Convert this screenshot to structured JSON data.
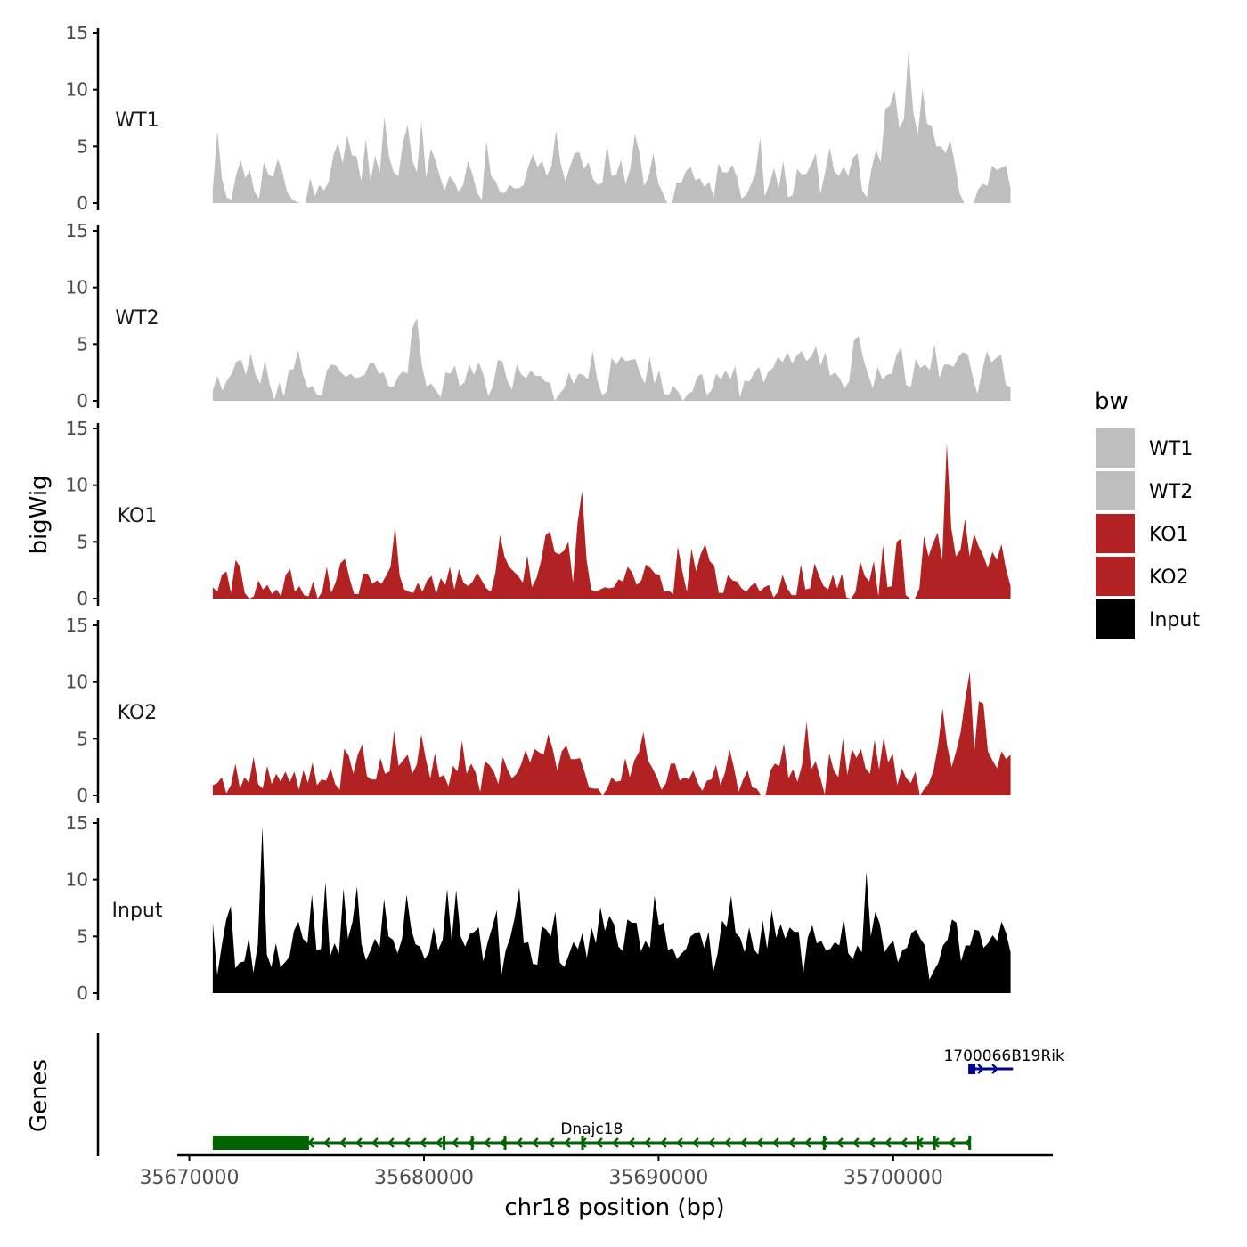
{
  "chart_data": {
    "type": "area",
    "ylabel": "bigWig",
    "xlabel": "chr18 position (bp)",
    "genes_label": "Genes",
    "ylim": [
      0,
      15
    ],
    "y_ticks": [
      0,
      5,
      10,
      15
    ],
    "y_tick_labels": [
      "0",
      "5",
      "10",
      "15"
    ],
    "x_ticks": [
      35670000,
      35680000,
      35690000,
      35700000
    ],
    "x_tick_labels": [
      "35670000",
      "35680000",
      "35690000",
      "35700000"
    ],
    "xlim": [
      35669600,
      35706800
    ],
    "data_range": [
      35671000,
      35705000
    ],
    "legend": {
      "title": "bw",
      "position": "right",
      "items": [
        {
          "label": "WT1",
          "color": "#bebebe"
        },
        {
          "label": "WT2",
          "color": "#bebebe"
        },
        {
          "label": "KO1",
          "color": "#b22222"
        },
        {
          "label": "KO2",
          "color": "#b22222"
        },
        {
          "label": "Input",
          "color": "#000000"
        }
      ]
    },
    "series": [
      {
        "name": "WT1",
        "color": "#bebebe",
        "values": [
          1.2,
          6.4,
          2.1,
          0.5,
          0.3,
          2.4,
          3.8,
          2.2,
          2.9,
          1.0,
          0.4,
          3.6,
          2.5,
          2.3,
          3.9,
          2.8,
          1.0,
          0.4,
          0.1,
          0.0,
          0.0,
          2.2,
          0.6,
          1.6,
          1.1,
          1.9,
          4.2,
          5.3,
          3.5,
          6.0,
          4.2,
          4.1,
          1.9,
          5.7,
          1.9,
          4.2,
          2.6,
          7.6,
          4.1,
          2.7,
          2.4,
          5.3,
          6.9,
          3.8,
          2.7,
          7.2,
          2.2,
          4.8,
          3.8,
          2.3,
          1.1,
          2.4,
          1.9,
          1.0,
          1.6,
          3.7,
          2.5,
          0.9,
          0.3,
          5.5,
          2.4,
          1.9,
          0.9,
          0.9,
          1.6,
          1.3,
          1.3,
          1.6,
          3.2,
          4.3,
          3.2,
          3.7,
          2.4,
          3.2,
          6.4,
          3.5,
          1.9,
          3.2,
          4.4,
          4.5,
          3.0,
          3.6,
          2.1,
          1.6,
          1.8,
          5.2,
          2.4,
          2.5,
          3.8,
          1.7,
          3.0,
          6.1,
          4.4,
          1.5,
          2.4,
          4.4,
          1.8,
          0.9,
          0.0,
          0.0,
          1.8,
          1.8,
          2.8,
          3.2,
          2.0,
          2.2,
          1.4,
          1.9,
          0.5,
          3.5,
          2.7,
          2.7,
          3.4,
          2.3,
          0.4,
          0.7,
          1.6,
          2.6,
          5.8,
          0.6,
          1.7,
          3.1,
          1.3,
          3.7,
          0.5,
          0.7,
          3.0,
          2.5,
          2.6,
          3.4,
          4.4,
          0.8,
          2.7,
          4.9,
          2.8,
          2.4,
          3.2,
          2.4,
          4.0,
          4.4,
          1.1,
          0.5,
          3.0,
          4.7,
          3.6,
          8.3,
          8.6,
          10.0,
          6.6,
          7.4,
          13.5,
          8.1,
          6.0,
          10.1,
          7.0,
          6.8,
          5.0,
          5.0,
          4.4,
          5.6,
          3.4,
          0.9,
          0.0,
          0.0,
          0.0,
          1.2,
          1.7,
          1.5,
          3.3,
          2.9,
          3.1,
          3.3,
          1.3
        ]
      },
      {
        "name": "WT2",
        "color": "#bebebe",
        "values": [
          0.9,
          2.2,
          0.9,
          1.8,
          2.4,
          3.5,
          3.6,
          2.3,
          4.2,
          2.3,
          1.5,
          3.6,
          1.4,
          0.1,
          1.6,
          0.4,
          2.7,
          2.8,
          4.5,
          2.3,
          1.1,
          1.3,
          0.5,
          0.5,
          2.7,
          3.2,
          3.1,
          2.5,
          2.1,
          2.4,
          2.0,
          2.1,
          2.3,
          3.3,
          3.3,
          2.4,
          2.5,
          1.3,
          1.2,
          2.1,
          2.6,
          2.4,
          6.4,
          7.3,
          3.2,
          1.3,
          1.5,
          0.9,
          0.3,
          2.5,
          2.4,
          3.1,
          1.3,
          1.6,
          3.2,
          2.3,
          3.4,
          2.3,
          0.4,
          1.3,
          3.6,
          3.5,
          1.8,
          1.0,
          3.2,
          2.3,
          2.0,
          2.7,
          2.2,
          2.2,
          1.7,
          1.6,
          0.0,
          0.6,
          1.1,
          2.5,
          1.5,
          2.4,
          2.3,
          1.9,
          4.4,
          1.8,
          0.5,
          0.8,
          3.8,
          3.2,
          3.9,
          3.5,
          3.6,
          3.7,
          2.4,
          1.5,
          3.9,
          1.5,
          2.7,
          0.6,
          0.5,
          1.3,
          0.8,
          0.0,
          0.6,
          0.8,
          2.1,
          2.4,
          0.5,
          0.9,
          2.4,
          1.9,
          2.7,
          1.9,
          3.1,
          0.3,
          1.8,
          1.7,
          2.5,
          3.0,
          1.6,
          2.6,
          2.9,
          3.9,
          3.4,
          4.3,
          3.3,
          4.0,
          4.4,
          3.5,
          3.9,
          4.8,
          3.1,
          4.3,
          2.2,
          2.5,
          2.0,
          1.1,
          1.7,
          5.3,
          5.7,
          3.7,
          2.3,
          1.1,
          3.0,
          1.9,
          2.3,
          2.4,
          4.1,
          4.7,
          1.4,
          1.2,
          3.7,
          2.9,
          3.2,
          2.7,
          5.0,
          2.0,
          3.2,
          3.2,
          3.0,
          3.9,
          4.3,
          4.1,
          2.2,
          0.6,
          2.6,
          4.4,
          3.4,
          3.8,
          4.1,
          1.4,
          1.2
        ]
      },
      {
        "name": "KO1",
        "color": "#b22222",
        "values": [
          1.0,
          0.6,
          2.1,
          2.4,
          0.5,
          3.4,
          2.8,
          0.5,
          0.0,
          0.2,
          1.6,
          0.8,
          1.2,
          0.4,
          0.8,
          0.2,
          2.1,
          2.6,
          0.6,
          1.1,
          0.3,
          0.2,
          1.5,
          0.0,
          0.6,
          2.8,
          0.5,
          1.5,
          3.1,
          3.5,
          1.8,
          0.4,
          0.4,
          2.2,
          2.2,
          1.3,
          1.6,
          1.3,
          2.0,
          2.8,
          6.4,
          2.0,
          0.8,
          0.6,
          0.5,
          1.4,
          0.6,
          1.6,
          2.0,
          0.4,
          1.8,
          1.2,
          2.8,
          0.8,
          2.6,
          1.4,
          1.1,
          1.5,
          2.3,
          1.6,
          0.9,
          0.6,
          2.3,
          5.6,
          3.7,
          2.8,
          2.4,
          2.0,
          1.4,
          3.8,
          1.0,
          1.8,
          3.3,
          5.6,
          5.9,
          4.1,
          3.9,
          4.2,
          5.0,
          1.4,
          6.6,
          9.5,
          3.4,
          0.8,
          0.6,
          0.8,
          1.0,
          0.9,
          1.0,
          1.7,
          1.5,
          2.8,
          2.3,
          1.2,
          1.6,
          3.0,
          2.7,
          2.2,
          2.1,
          0.6,
          0.7,
          0.4,
          4.6,
          2.4,
          0.6,
          4.4,
          2.4,
          3.9,
          4.8,
          3.3,
          2.9,
          0.5,
          0.5,
          2.1,
          1.6,
          1.5,
          0.9,
          0.6,
          1.1,
          1.4,
          0.6,
          1.0,
          1.2,
          0.1,
          0.6,
          2.1,
          0.9,
          0.3,
          0.3,
          3.0,
          0.8,
          0.9,
          3.1,
          2.0,
          1.1,
          0.8,
          2.1,
          0.9,
          2.2,
          0.1,
          0.0,
          0.6,
          3.3,
          2.0,
          1.5,
          3.3,
          0.2,
          4.7,
          1.0,
          1.1,
          5.0,
          5.3,
          0.3,
          0.0,
          0.0,
          0.9,
          5.5,
          3.7,
          4.9,
          5.8,
          3.4,
          13.7,
          6.2,
          3.7,
          4.3,
          7.0,
          3.7,
          5.7,
          4.6,
          3.8,
          2.7,
          4.1,
          3.4,
          4.8,
          2.6,
          1.1
        ]
      },
      {
        "name": "KO2",
        "color": "#b22222",
        "values": [
          0.9,
          1.1,
          1.6,
          0.2,
          0.9,
          2.8,
          0.6,
          1.6,
          1.1,
          3.4,
          1.0,
          0.6,
          2.6,
          1.0,
          1.9,
          1.2,
          2.1,
          1.2,
          2.1,
          0.5,
          2.2,
          1.1,
          2.9,
          0.9,
          1.4,
          1.3,
          2.4,
          1.0,
          0.5,
          4.1,
          3.5,
          1.9,
          3.6,
          4.5,
          1.7,
          1.4,
          1.4,
          3.3,
          1.9,
          2.1,
          5.7,
          2.6,
          3.1,
          3.6,
          1.9,
          2.7,
          5.4,
          3.2,
          1.5,
          3.7,
          1.6,
          1.8,
          0.8,
          2.6,
          2.1,
          4.8,
          1.9,
          2.8,
          2.0,
          0.3,
          3.0,
          2.7,
          2.1,
          1.0,
          3.4,
          2.3,
          1.5,
          1.9,
          2.7,
          4.0,
          2.9,
          4.1,
          3.8,
          3.6,
          5.4,
          4.1,
          2.2,
          3.9,
          4.4,
          3.2,
          3.2,
          3.3,
          2.1,
          0.7,
          0.6,
          0.6,
          0.0,
          0.6,
          1.6,
          1.2,
          1.3,
          3.3,
          1.6,
          3.1,
          3.8,
          5.6,
          3.1,
          2.4,
          1.6,
          0.5,
          1.1,
          2.8,
          2.8,
          1.3,
          1.6,
          1.4,
          2.2,
          1.1,
          0.4,
          1.3,
          1.4,
          2.7,
          0.9,
          2.0,
          4.1,
          2.4,
          0.3,
          1.4,
          2.2,
          0.7,
          0.6,
          0.0,
          0.1,
          2.2,
          2.8,
          2.6,
          4.6,
          1.5,
          2.3,
          1.2,
          2.7,
          6.5,
          2.3,
          3.0,
          1.6,
          0.1,
          3.7,
          2.2,
          1.6,
          5.0,
          1.8,
          4.1,
          3.3,
          4.1,
          2.4,
          1.9,
          4.9,
          2.3,
          5.1,
          2.9,
          3.7,
          0.9,
          2.4,
          1.5,
          1.1,
          2.1,
          0.0,
          0.6,
          1.1,
          2.2,
          4.4,
          7.7,
          4.4,
          2.5,
          3.9,
          5.6,
          8.5,
          10.9,
          3.9,
          8.3,
          8.1,
          3.9,
          3.1,
          2.4,
          3.9,
          3.2,
          3.6
        ]
      },
      {
        "name": "Input",
        "color": "#000000",
        "values": [
          6.2,
          1.6,
          4.2,
          6.5,
          7.7,
          2.2,
          2.7,
          2.8,
          4.9,
          1.8,
          4.3,
          14.7,
          3.4,
          2.3,
          4.4,
          2.3,
          2.7,
          3.2,
          5.5,
          6.3,
          4.8,
          4.4,
          8.7,
          3.8,
          3.9,
          9.8,
          3.2,
          4.4,
          3.5,
          9.2,
          4.8,
          6.3,
          9.4,
          4.3,
          2.9,
          3.8,
          4.8,
          4.0,
          8.3,
          5.0,
          4.7,
          3.5,
          4.8,
          8.7,
          5.7,
          4.3,
          4.1,
          3.0,
          3.6,
          5.8,
          3.8,
          4.7,
          9.2,
          4.6,
          9.1,
          5.0,
          4.1,
          5.2,
          5.4,
          5.8,
          2.8,
          4.5,
          5.8,
          7.3,
          1.5,
          3.8,
          4.9,
          6.7,
          9.3,
          4.4,
          4.5,
          2.6,
          2.5,
          5.9,
          5.6,
          5.0,
          7.2,
          2.7,
          2.3,
          3.4,
          4.5,
          3.9,
          5.3,
          3.1,
          5.8,
          4.4,
          7.6,
          5.5,
          6.8,
          6.1,
          4.1,
          3.7,
          6.5,
          6.2,
          6.2,
          3.7,
          4.6,
          4.0,
          8.6,
          6.0,
          6.2,
          3.8,
          4.0,
          3.0,
          3.5,
          3.9,
          5.0,
          5.3,
          5.4,
          4.0,
          5.4,
          1.8,
          3.5,
          6.4,
          5.8,
          8.6,
          5.3,
          4.9,
          3.6,
          5.8,
          3.9,
          3.4,
          6.4,
          3.9,
          7.3,
          4.9,
          6.1,
          4.8,
          5.8,
          5.4,
          5.4,
          1.7,
          4.9,
          6.0,
          4.4,
          4.6,
          3.8,
          3.9,
          4.5,
          4.2,
          6.6,
          3.5,
          3.0,
          4.2,
          3.6,
          10.7,
          5.0,
          7.2,
          6.1,
          3.6,
          4.2,
          4.6,
          2.7,
          3.8,
          4.0,
          5.3,
          5.6,
          4.8,
          4.2,
          1.2,
          2.0,
          2.7,
          4.2,
          4.7,
          6.5,
          6.2,
          2.8,
          4.2,
          4.2,
          5.6,
          5.5,
          4.0,
          4.4,
          5.1,
          4.6,
          6.3,
          5.3,
          3.6
        ]
      }
    ],
    "genes": [
      {
        "name": "Dnajc18",
        "color": "#006400",
        "start": 35671000,
        "end": 35703300,
        "strand": "-",
        "exons": [
          [
            35671000,
            35675100
          ],
          [
            35680800,
            35680900
          ],
          [
            35682000,
            35682100
          ],
          [
            35683400,
            35683500
          ],
          [
            35686700,
            35686800
          ],
          [
            35697000,
            35697100
          ],
          [
            35701000,
            35701100
          ],
          [
            35701700,
            35701800
          ],
          [
            35703200,
            35703300
          ]
        ]
      },
      {
        "name": "1700066B19Rik",
        "color": "#00008b",
        "start": 35703200,
        "end": 35705100,
        "strand": "+",
        "exons": [
          [
            35703200,
            35703500
          ]
        ]
      }
    ]
  }
}
